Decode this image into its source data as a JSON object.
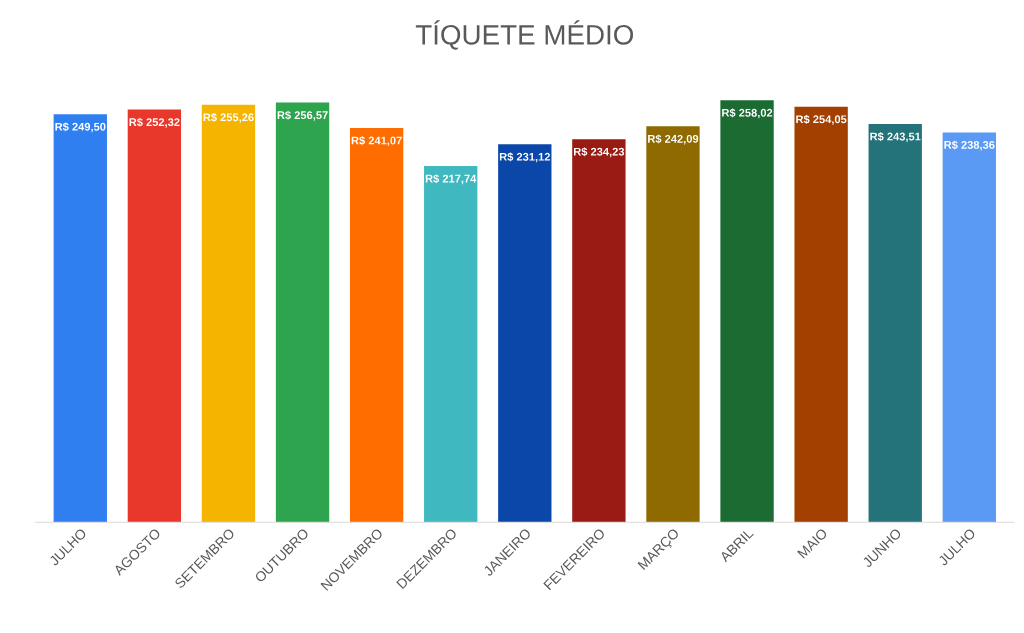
{
  "chart_data": {
    "type": "bar",
    "title": "TÍQUETE MÉDIO",
    "categories": [
      "JULHO",
      "AGOSTO",
      "SETEMBRO",
      "OUTUBRO",
      "NOVEMBRO",
      "DEZEMBRO",
      "JANEIRO",
      "FEVEREIRO",
      "MARÇO",
      "ABRIL",
      "MAIO",
      "JUNHO",
      "JULHO"
    ],
    "values": [
      249.5,
      252.32,
      255.26,
      256.57,
      241.07,
      217.74,
      231.12,
      234.23,
      242.09,
      258.02,
      254.05,
      243.51,
      238.36
    ],
    "value_labels": [
      "R$ 249,50",
      "R$ 252,32",
      "R$ 255,26",
      "R$ 256,57",
      "R$ 241,07",
      "R$ 217,74",
      "R$ 231,12",
      "R$ 234,23",
      "R$ 242,09",
      "R$ 258,02",
      "R$ 254,05",
      "R$ 243,51",
      "R$ 238,36"
    ],
    "colors": [
      "#2f7ff0",
      "#e8382c",
      "#f4b400",
      "#2ea44f",
      "#ff6d00",
      "#3fb8c0",
      "#0b47a8",
      "#9a1b14",
      "#8f6a00",
      "#1b6b32",
      "#a34000",
      "#24737a",
      "#5a9af5"
    ],
    "tick_labels": "x",
    "grid": false,
    "legend": false
  }
}
